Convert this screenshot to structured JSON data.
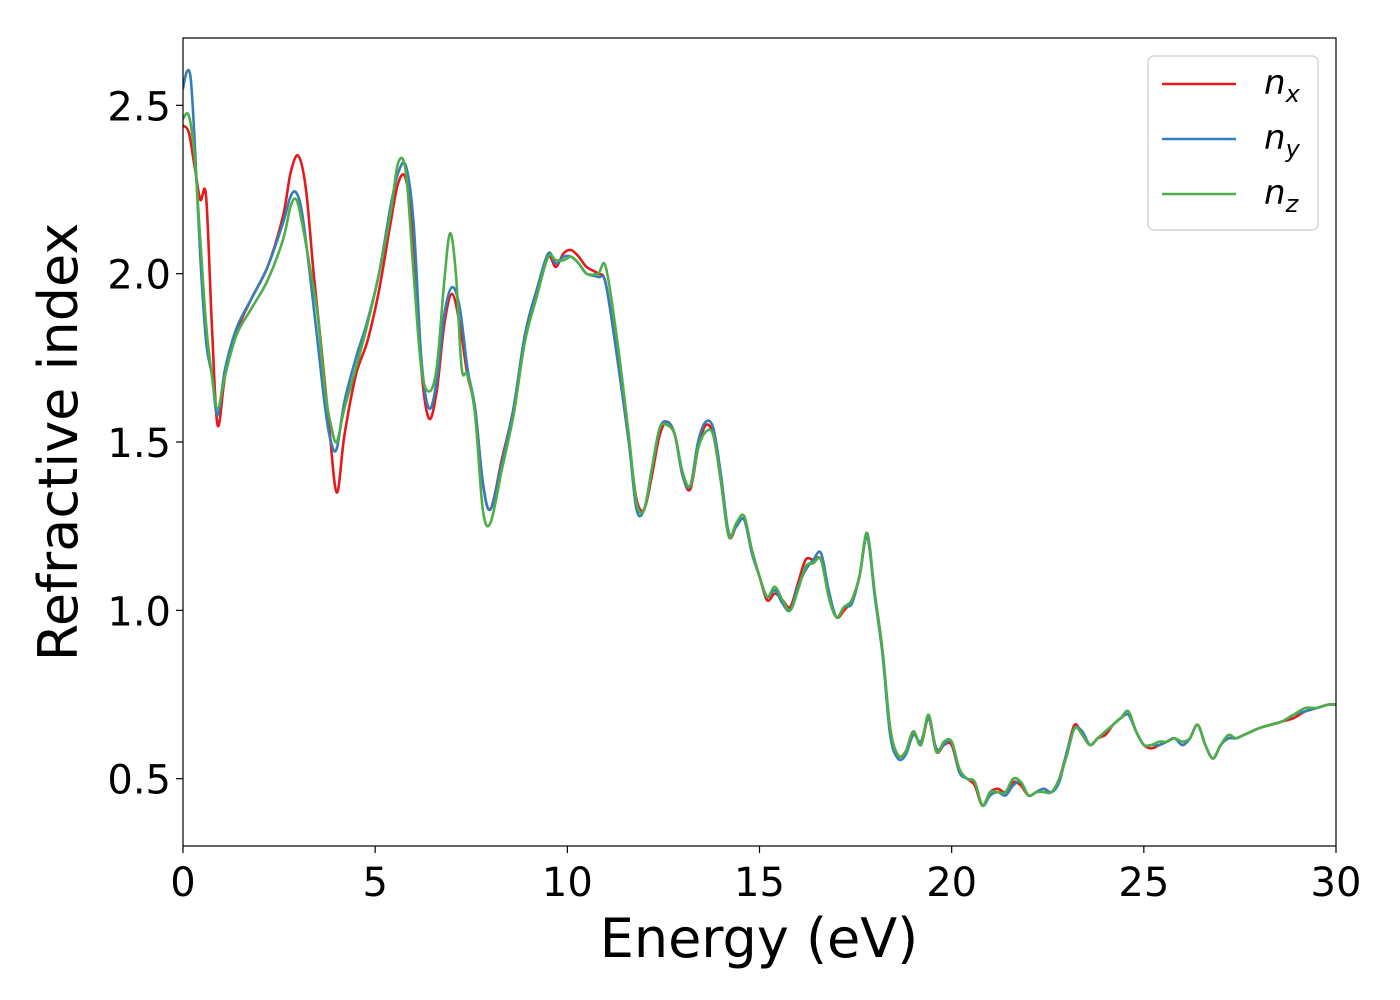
{
  "chart_data": {
    "type": "line",
    "xlabel": "Energy (eV)",
    "ylabel": "Refractive index",
    "xlim": [
      0,
      30
    ],
    "ylim": [
      0.3,
      2.7
    ],
    "xticks": [
      0,
      5,
      10,
      15,
      20,
      25,
      30
    ],
    "yticks": [
      0.5,
      1.0,
      1.5,
      2.0,
      2.5
    ],
    "xtick_labels": [
      "0",
      "5",
      "10",
      "15",
      "20",
      "25",
      "30"
    ],
    "ytick_labels": [
      "0.5",
      "1.0",
      "1.5",
      "2.0",
      "2.5"
    ],
    "grid": false,
    "legend_position": "top-right",
    "series": [
      {
        "name": "n",
        "subscript": "x",
        "color": "#e41a1c",
        "x": [
          0,
          0.15,
          0.3,
          0.45,
          0.6,
          0.75,
          0.9,
          1.1,
          1.4,
          1.8,
          2.2,
          2.6,
          2.8,
          3.0,
          3.2,
          3.4,
          3.6,
          3.8,
          4.0,
          4.2,
          4.5,
          4.8,
          5.1,
          5.4,
          5.6,
          5.8,
          6.0,
          6.2,
          6.4,
          6.6,
          6.8,
          7.0,
          7.2,
          7.4,
          7.6,
          7.8,
          8.0,
          8.3,
          8.6,
          8.9,
          9.2,
          9.5,
          9.7,
          9.9,
          10.1,
          10.3,
          10.5,
          10.8,
          11.0,
          11.3,
          11.6,
          11.8,
          12.0,
          12.2,
          12.4,
          12.6,
          12.8,
          13.0,
          13.2,
          13.4,
          13.6,
          13.8,
          14.0,
          14.2,
          14.4,
          14.6,
          14.8,
          15.0,
          15.2,
          15.4,
          15.6,
          15.8,
          16.0,
          16.2,
          16.4,
          16.6,
          16.8,
          17.0,
          17.2,
          17.4,
          17.6,
          17.8,
          18.0,
          18.2,
          18.4,
          18.6,
          18.8,
          19.0,
          19.2,
          19.4,
          19.6,
          19.8,
          20.0,
          20.2,
          20.4,
          20.6,
          20.8,
          21.0,
          21.2,
          21.4,
          21.6,
          21.8,
          22.0,
          22.2,
          22.4,
          22.6,
          22.8,
          23.0,
          23.2,
          23.4,
          23.6,
          23.8,
          24.0,
          24.2,
          24.4,
          24.6,
          24.8,
          25.0,
          25.2,
          25.4,
          25.6,
          25.8,
          26.0,
          26.2,
          26.4,
          26.6,
          26.8,
          27.0,
          27.2,
          27.4,
          27.6,
          27.8,
          28.0,
          28.3,
          28.6,
          28.9,
          29.2,
          29.5,
          29.8,
          30.0
        ],
        "y": [
          2.44,
          2.42,
          2.32,
          2.22,
          2.23,
          1.85,
          1.55,
          1.7,
          1.83,
          1.93,
          2.02,
          2.17,
          2.3,
          2.35,
          2.25,
          2.0,
          1.78,
          1.55,
          1.35,
          1.52,
          1.7,
          1.8,
          1.95,
          2.15,
          2.27,
          2.28,
          2.1,
          1.72,
          1.57,
          1.65,
          1.85,
          1.94,
          1.85,
          1.7,
          1.6,
          1.38,
          1.3,
          1.45,
          1.6,
          1.82,
          1.95,
          2.05,
          2.02,
          2.06,
          2.07,
          2.05,
          2.02,
          2.0,
          1.97,
          1.75,
          1.5,
          1.33,
          1.3,
          1.4,
          1.52,
          1.56,
          1.52,
          1.4,
          1.36,
          1.48,
          1.55,
          1.52,
          1.38,
          1.22,
          1.25,
          1.27,
          1.18,
          1.1,
          1.03,
          1.05,
          1.03,
          1.01,
          1.08,
          1.15,
          1.15,
          1.15,
          1.05,
          0.98,
          1.0,
          1.03,
          1.1,
          1.22,
          1.05,
          0.88,
          0.65,
          0.57,
          0.58,
          0.64,
          0.6,
          0.68,
          0.58,
          0.6,
          0.6,
          0.52,
          0.5,
          0.48,
          0.42,
          0.46,
          0.47,
          0.46,
          0.49,
          0.48,
          0.45,
          0.46,
          0.47,
          0.46,
          0.5,
          0.58,
          0.66,
          0.63,
          0.6,
          0.62,
          0.63,
          0.66,
          0.68,
          0.69,
          0.64,
          0.6,
          0.59,
          0.6,
          0.61,
          0.62,
          0.6,
          0.62,
          0.66,
          0.6,
          0.56,
          0.6,
          0.62,
          0.62,
          0.63,
          0.64,
          0.65,
          0.66,
          0.67,
          0.68,
          0.7,
          0.71,
          0.72,
          0.72
        ],
        "legend_label": "n"
      },
      {
        "name": "n",
        "subscript": "y",
        "color": "#377eb8",
        "x": [
          0,
          0.1,
          0.2,
          0.3,
          0.45,
          0.6,
          0.75,
          0.9,
          1.1,
          1.4,
          1.8,
          2.2,
          2.6,
          2.8,
          2.95,
          3.1,
          3.3,
          3.5,
          3.7,
          3.85,
          4.0,
          4.2,
          4.5,
          4.8,
          5.1,
          5.4,
          5.6,
          5.8,
          6.0,
          6.2,
          6.4,
          6.6,
          6.8,
          7.0,
          7.2,
          7.4,
          7.6,
          7.8,
          8.0,
          8.3,
          8.6,
          8.9,
          9.2,
          9.5,
          9.7,
          9.9,
          10.1,
          10.3,
          10.5,
          10.8,
          11.0,
          11.3,
          11.6,
          11.8,
          12.0,
          12.2,
          12.4,
          12.6,
          12.8,
          13.0,
          13.2,
          13.4,
          13.6,
          13.8,
          14.0,
          14.2,
          14.4,
          14.6,
          14.8,
          15.0,
          15.2,
          15.4,
          15.6,
          15.8,
          16.0,
          16.2,
          16.4,
          16.6,
          16.8,
          17.0,
          17.2,
          17.4,
          17.6,
          17.8,
          18.0,
          18.2,
          18.4,
          18.6,
          18.8,
          19.0,
          19.2,
          19.4,
          19.6,
          19.8,
          20.0,
          20.2,
          20.4,
          20.6,
          20.8,
          21.0,
          21.2,
          21.4,
          21.6,
          21.8,
          22.0,
          22.2,
          22.4,
          22.6,
          22.8,
          23.0,
          23.2,
          23.4,
          23.6,
          23.8,
          24.0,
          24.2,
          24.4,
          24.6,
          24.8,
          25.0,
          25.2,
          25.4,
          25.6,
          25.8,
          26.0,
          26.2,
          26.4,
          26.6,
          26.8,
          27.0,
          27.2,
          27.4,
          27.6,
          27.8,
          28.0,
          28.3,
          28.6,
          28.9,
          29.2,
          29.5,
          29.8,
          30.0
        ],
        "y": [
          2.55,
          2.6,
          2.58,
          2.4,
          2.05,
          1.8,
          1.7,
          1.58,
          1.72,
          1.84,
          1.93,
          2.02,
          2.15,
          2.23,
          2.24,
          2.18,
          2.0,
          1.8,
          1.6,
          1.5,
          1.48,
          1.62,
          1.75,
          1.86,
          2.0,
          2.2,
          2.3,
          2.32,
          2.15,
          1.75,
          1.6,
          1.68,
          1.88,
          1.96,
          1.9,
          1.72,
          1.6,
          1.38,
          1.3,
          1.44,
          1.6,
          1.82,
          1.95,
          2.06,
          2.03,
          2.05,
          2.05,
          2.03,
          2.0,
          1.99,
          1.97,
          1.75,
          1.5,
          1.3,
          1.3,
          1.42,
          1.54,
          1.56,
          1.52,
          1.4,
          1.37,
          1.5,
          1.56,
          1.54,
          1.4,
          1.23,
          1.25,
          1.27,
          1.17,
          1.1,
          1.04,
          1.06,
          1.02,
          1.0,
          1.07,
          1.12,
          1.15,
          1.17,
          1.06,
          0.98,
          1.01,
          1.02,
          1.1,
          1.22,
          1.04,
          0.87,
          0.63,
          0.56,
          0.57,
          0.63,
          0.61,
          0.68,
          0.59,
          0.6,
          0.61,
          0.52,
          0.5,
          0.49,
          0.42,
          0.45,
          0.46,
          0.45,
          0.48,
          0.49,
          0.45,
          0.46,
          0.47,
          0.46,
          0.49,
          0.58,
          0.65,
          0.64,
          0.6,
          0.62,
          0.64,
          0.66,
          0.68,
          0.69,
          0.64,
          0.6,
          0.6,
          0.6,
          0.61,
          0.62,
          0.6,
          0.62,
          0.66,
          0.6,
          0.56,
          0.6,
          0.62,
          0.62,
          0.63,
          0.64,
          0.65,
          0.66,
          0.67,
          0.69,
          0.7,
          0.71,
          0.72,
          0.72
        ],
        "legend_label": "n"
      },
      {
        "name": "n",
        "subscript": "z",
        "color": "#4daf4a",
        "x": [
          0,
          0.15,
          0.3,
          0.45,
          0.6,
          0.75,
          0.9,
          1.1,
          1.4,
          1.8,
          2.2,
          2.6,
          2.8,
          2.95,
          3.1,
          3.3,
          3.5,
          3.7,
          3.85,
          4.0,
          4.2,
          4.5,
          4.8,
          5.1,
          5.4,
          5.6,
          5.8,
          6.0,
          6.2,
          6.4,
          6.6,
          6.8,
          6.95,
          7.1,
          7.25,
          7.4,
          7.6,
          7.8,
          8.0,
          8.3,
          8.6,
          8.9,
          9.2,
          9.5,
          9.7,
          9.9,
          10.1,
          10.3,
          10.5,
          10.8,
          11.0,
          11.3,
          11.6,
          11.8,
          12.0,
          12.2,
          12.4,
          12.6,
          12.8,
          13.0,
          13.2,
          13.4,
          13.6,
          13.8,
          14.0,
          14.2,
          14.4,
          14.6,
          14.8,
          15.0,
          15.2,
          15.4,
          15.6,
          15.8,
          16.0,
          16.2,
          16.4,
          16.6,
          16.8,
          17.0,
          17.2,
          17.4,
          17.6,
          17.8,
          18.0,
          18.2,
          18.4,
          18.6,
          18.8,
          19.0,
          19.2,
          19.4,
          19.6,
          19.8,
          20.0,
          20.2,
          20.4,
          20.6,
          20.8,
          21.0,
          21.2,
          21.4,
          21.6,
          21.8,
          22.0,
          22.2,
          22.4,
          22.6,
          22.8,
          23.0,
          23.2,
          23.4,
          23.6,
          23.8,
          24.0,
          24.2,
          24.4,
          24.6,
          24.8,
          25.0,
          25.2,
          25.4,
          25.6,
          25.8,
          26.0,
          26.2,
          26.4,
          26.6,
          26.8,
          27.0,
          27.2,
          27.4,
          27.6,
          27.8,
          28.0,
          28.3,
          28.6,
          28.9,
          29.2,
          29.5,
          29.8,
          30.0
        ],
        "y": [
          2.46,
          2.47,
          2.35,
          2.1,
          1.85,
          1.7,
          1.6,
          1.7,
          1.82,
          1.9,
          1.98,
          2.1,
          2.2,
          2.22,
          2.15,
          2.02,
          1.88,
          1.65,
          1.55,
          1.5,
          1.6,
          1.72,
          1.85,
          2.0,
          2.18,
          2.33,
          2.3,
          2.0,
          1.72,
          1.65,
          1.72,
          1.98,
          2.12,
          2.0,
          1.72,
          1.7,
          1.58,
          1.3,
          1.26,
          1.42,
          1.58,
          1.8,
          1.93,
          2.05,
          2.04,
          2.04,
          2.05,
          2.03,
          2.0,
          2.0,
          2.02,
          1.8,
          1.52,
          1.32,
          1.3,
          1.42,
          1.54,
          1.55,
          1.52,
          1.41,
          1.37,
          1.48,
          1.53,
          1.52,
          1.38,
          1.22,
          1.26,
          1.28,
          1.18,
          1.1,
          1.04,
          1.07,
          1.03,
          1.0,
          1.06,
          1.13,
          1.14,
          1.15,
          1.04,
          0.98,
          1.01,
          1.03,
          1.1,
          1.23,
          1.05,
          0.88,
          0.65,
          0.57,
          0.58,
          0.64,
          0.6,
          0.69,
          0.58,
          0.61,
          0.61,
          0.53,
          0.5,
          0.49,
          0.42,
          0.46,
          0.46,
          0.46,
          0.5,
          0.49,
          0.45,
          0.46,
          0.46,
          0.46,
          0.5,
          0.57,
          0.65,
          0.63,
          0.6,
          0.62,
          0.64,
          0.66,
          0.68,
          0.7,
          0.64,
          0.6,
          0.6,
          0.61,
          0.61,
          0.62,
          0.61,
          0.62,
          0.66,
          0.6,
          0.56,
          0.6,
          0.63,
          0.62,
          0.63,
          0.64,
          0.65,
          0.66,
          0.67,
          0.69,
          0.71,
          0.71,
          0.72,
          0.72
        ],
        "legend_label": "n"
      }
    ]
  }
}
